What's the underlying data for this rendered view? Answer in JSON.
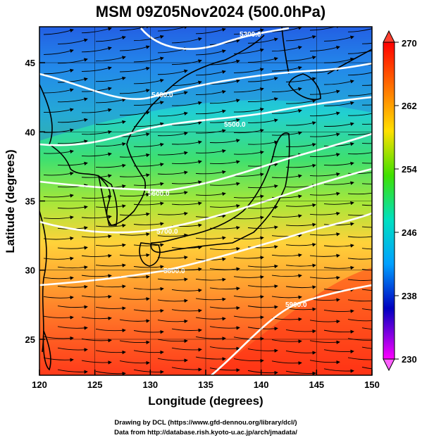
{
  "title": "MSM 09Z05Nov2024 (500.0hPa)",
  "xlabel": "Longitude (degrees)",
  "ylabel": "Latitude  (degrees)",
  "credits": [
    "Drawing by DCL (https://www.gfd-dennou.org/library/dcl/)",
    "Data from http://database.rish.kyoto-u.ac.jp/arch/jmadata/"
  ],
  "map": {
    "lon_range": [
      120,
      150
    ],
    "lat_range": [
      22.4,
      47.6
    ],
    "lon_ticks": [
      120,
      125,
      130,
      135,
      140,
      145,
      150
    ],
    "lat_ticks": [
      25,
      30,
      35,
      40,
      45
    ],
    "grid": true,
    "shaded_field": "temperature (K)",
    "colorbar": {
      "min": 230,
      "max": 270,
      "labels": [
        "270",
        "262",
        "254",
        "246",
        "238",
        "230"
      ],
      "colors": [
        "#ff0000",
        "#ff8000",
        "#ffe000",
        "#40e000",
        "#00e0c0",
        "#00a0ff",
        "#0000c0",
        "#ff00ff"
      ]
    },
    "contour_labels": [
      "5300.0",
      "5400.0",
      "5500.0",
      "5600.0",
      "5700.0",
      "5800.0",
      "5900.0"
    ]
  }
}
